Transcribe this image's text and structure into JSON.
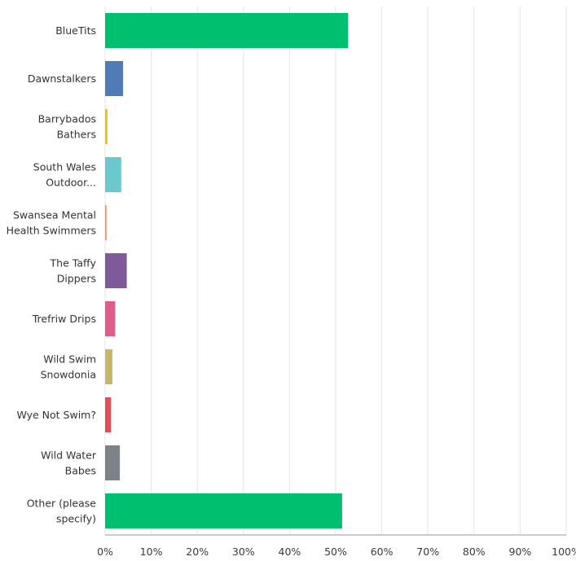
{
  "chart_data": {
    "type": "bar",
    "orientation": "horizontal",
    "title": "",
    "xlabel": "",
    "ylabel": "",
    "xlim": [
      0,
      100
    ],
    "x_ticks": [
      "0%",
      "10%",
      "20%",
      "30%",
      "40%",
      "50%",
      "60%",
      "70%",
      "80%",
      "90%",
      "100%"
    ],
    "grid": true,
    "legend": "none",
    "categories": [
      [
        "BlueTits"
      ],
      [
        "Dawnstalkers"
      ],
      [
        "Barrybados",
        "Bathers"
      ],
      [
        "South Wales",
        "Outdoor..."
      ],
      [
        "Swansea Mental",
        "Health Swimmers"
      ],
      [
        "The Taffy",
        "Dippers"
      ],
      [
        "Trefriw Drips"
      ],
      [
        "Wild Swim",
        "Snowdonia"
      ],
      [
        "Wye Not Swim?"
      ],
      [
        "Wild Water",
        "Babes"
      ],
      [
        "Other (please",
        "specify)"
      ]
    ],
    "values": [
      52.7,
      3.9,
      0.5,
      3.5,
      0.3,
      4.7,
      2.2,
      1.6,
      1.3,
      3.2,
      51.4
    ],
    "colors": [
      "#00bf6f",
      "#507cb6",
      "#f9be00",
      "#6bc8cd",
      "#ff8b4f",
      "#7f5a9b",
      "#e05c8d",
      "#c8b66b",
      "#e04e5a",
      "#7d8288",
      "#00bf6f"
    ]
  }
}
